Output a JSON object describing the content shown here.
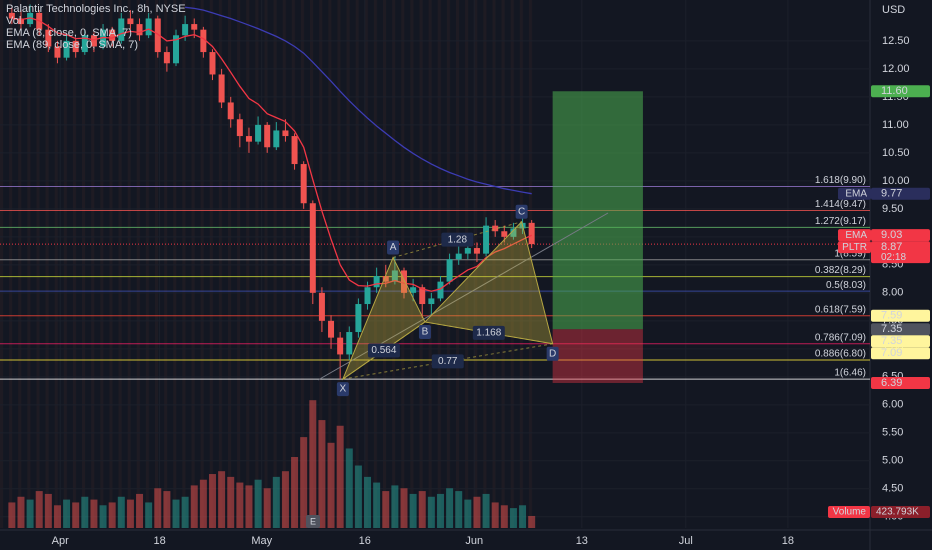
{
  "chart_data": {
    "type": "candlestick",
    "title": "Palantir Technologies Inc., 8h, NYSE",
    "currency": "USD",
    "earnings_marker": "E",
    "x": [
      0,
      1,
      2,
      3,
      4,
      5,
      6,
      7,
      8,
      9,
      10,
      11,
      12,
      13,
      14,
      15,
      16,
      17,
      18,
      19,
      20,
      21,
      22,
      23,
      24,
      25,
      26,
      27,
      28,
      29,
      30,
      31,
      32,
      33,
      34,
      35,
      36,
      37,
      38,
      39,
      40,
      41,
      42,
      43,
      44,
      45,
      46,
      47,
      48,
      49,
      50,
      51,
      52,
      53,
      54,
      55,
      56,
      57
    ],
    "xlim": [
      -1.3,
      94.1
    ],
    "xticks": [
      {
        "value": 5.3,
        "label": "Apr"
      },
      {
        "value": 16.2,
        "label": "18"
      },
      {
        "value": 27.4,
        "label": "May"
      },
      {
        "value": 38.7,
        "label": "16"
      },
      {
        "value": 50.7,
        "label": "Jun"
      },
      {
        "value": 62.5,
        "label": "13"
      },
      {
        "value": 73.9,
        "label": "Jul"
      },
      {
        "value": 85.1,
        "label": "18"
      }
    ],
    "ylim": [
      3.8,
      13.23
    ],
    "yticks": [
      {
        "value": 4,
        "label": "4.00"
      },
      {
        "value": 4.5,
        "label": "4.50"
      },
      {
        "value": 5,
        "label": "5.00"
      },
      {
        "value": 5.5,
        "label": "5.50"
      },
      {
        "value": 6,
        "label": "6.00"
      },
      {
        "value": 6.5,
        "label": "6.50"
      },
      {
        "value": 7,
        "label": "7.00"
      },
      {
        "value": 7.5,
        "label": "7.50"
      },
      {
        "value": 8,
        "label": "8.00"
      },
      {
        "value": 8.5,
        "label": "8.50"
      },
      {
        "value": 9,
        "label": "9.00"
      },
      {
        "value": 9.5,
        "label": "9.50"
      },
      {
        "value": 10,
        "label": "10.00"
      },
      {
        "value": 10.5,
        "label": "10.50"
      },
      {
        "value": 11,
        "label": "11.00"
      },
      {
        "value": 11.5,
        "label": "11.50"
      },
      {
        "value": 12,
        "label": "12.00"
      },
      {
        "value": 12.5,
        "label": "12.50"
      }
    ],
    "y2lim": [
      0,
      5000
    ],
    "grid": true,
    "up_color": "#26a69a",
    "down_color": "#ef5350",
    "open": [
      13.0,
      12.9,
      12.8,
      13.0,
      12.7,
      12.4,
      12.2,
      12.5,
      12.3,
      12.6,
      12.4,
      12.7,
      12.5,
      12.9,
      12.8,
      12.6,
      12.9,
      12.3,
      12.1,
      12.6,
      12.8,
      12.7,
      12.3,
      11.9,
      11.4,
      11.1,
      10.8,
      10.7,
      11.0,
      10.6,
      10.9,
      10.8,
      10.3,
      9.6,
      8.0,
      7.5,
      7.2,
      6.9,
      7.3,
      7.8,
      8.1,
      8.3,
      8.2,
      8.4,
      8.0,
      8.1,
      7.8,
      7.9,
      8.2,
      8.6,
      8.7,
      8.8,
      8.7,
      9.2,
      9.1,
      9.0,
      9.15,
      9.25
    ],
    "high": [
      13.1,
      13.05,
      13.15,
      13.05,
      12.8,
      12.5,
      12.6,
      12.55,
      12.7,
      12.65,
      12.8,
      12.75,
      13.0,
      13.05,
      12.9,
      13.0,
      12.95,
      12.4,
      12.7,
      12.95,
      12.9,
      12.75,
      12.35,
      12.0,
      11.5,
      11.2,
      10.95,
      11.15,
      11.05,
      11.05,
      11.1,
      10.85,
      10.35,
      9.65,
      8.1,
      7.6,
      7.3,
      7.4,
      7.9,
      8.2,
      8.45,
      8.5,
      8.65,
      8.45,
      8.25,
      8.15,
      8.0,
      8.3,
      8.7,
      8.85,
      9.0,
      8.9,
      9.35,
      9.3,
      9.2,
      9.25,
      9.35,
      9.3
    ],
    "low": [
      12.8,
      12.7,
      12.75,
      12.6,
      12.3,
      12.1,
      12.15,
      12.2,
      12.25,
      12.3,
      12.35,
      12.4,
      12.45,
      12.7,
      12.5,
      12.55,
      12.2,
      11.95,
      12.05,
      12.5,
      12.55,
      12.2,
      11.8,
      11.3,
      10.95,
      10.6,
      10.5,
      10.65,
      10.5,
      10.55,
      10.7,
      10.2,
      9.5,
      7.8,
      7.3,
      7.0,
      6.46,
      6.8,
      7.2,
      7.7,
      8.0,
      8.1,
      8.15,
      7.9,
      7.85,
      7.55,
      7.6,
      7.85,
      8.15,
      8.5,
      8.6,
      8.55,
      8.65,
      9.0,
      8.9,
      8.95,
      9.05,
      8.8
    ],
    "close": [
      12.9,
      12.8,
      13.0,
      12.7,
      12.4,
      12.2,
      12.5,
      12.3,
      12.6,
      12.4,
      12.7,
      12.5,
      12.9,
      12.8,
      12.6,
      12.9,
      12.3,
      12.1,
      12.6,
      12.8,
      12.7,
      12.3,
      11.9,
      11.4,
      11.1,
      10.8,
      10.7,
      11.0,
      10.6,
      10.9,
      10.8,
      10.3,
      9.6,
      8.0,
      7.5,
      7.2,
      6.9,
      7.3,
      7.8,
      8.1,
      8.3,
      8.2,
      8.4,
      8.0,
      8.1,
      7.8,
      7.9,
      8.2,
      8.6,
      8.7,
      8.8,
      8.7,
      9.2,
      9.1,
      9.0,
      9.15,
      9.25,
      8.87
    ],
    "series": [
      {
        "name": "Vol",
        "axis": "y2",
        "values": [
          900,
          1100,
          1000,
          1300,
          1200,
          800,
          1000,
          900,
          1100,
          1000,
          800,
          900,
          1100,
          1000,
          1200,
          900,
          1400,
          1300,
          1000,
          1100,
          1500,
          1700,
          1900,
          2000,
          1800,
          1600,
          1500,
          1700,
          1400,
          1800,
          2000,
          2500,
          3200,
          4500,
          3800,
          3000,
          3600,
          2800,
          2200,
          1800,
          1600,
          1300,
          1500,
          1400,
          1200,
          1300,
          1100,
          1200,
          1400,
          1300,
          1000,
          1100,
          1200,
          900,
          800,
          700,
          800,
          423.793
        ]
      },
      {
        "name": "EMA (8, close, 0, SMA, 7)",
        "color": "#f23645",
        "values": [
          12.9,
          12.88,
          12.91,
          12.86,
          12.76,
          12.64,
          12.61,
          12.54,
          12.55,
          12.52,
          12.56,
          12.55,
          12.63,
          12.67,
          12.65,
          12.71,
          12.62,
          12.5,
          12.52,
          12.58,
          12.61,
          12.54,
          12.4,
          12.18,
          11.94,
          11.69,
          11.47,
          11.37,
          11.2,
          11.13,
          11.06,
          10.89,
          10.6,
          10.02,
          9.46,
          8.96,
          8.5,
          8.23,
          8.13,
          8.12,
          8.16,
          8.17,
          8.22,
          8.17,
          8.15,
          8.07,
          8.03,
          8.07,
          8.19,
          8.3,
          8.41,
          8.47,
          8.63,
          8.73,
          8.79,
          8.87,
          8.95,
          9.03
        ]
      },
      {
        "name": "EMA (89, close, 0, SMA, 7)",
        "color": "#3c3cb4",
        "values": [
          null,
          null,
          null,
          null,
          null,
          null,
          null,
          null,
          null,
          null,
          null,
          null,
          null,
          null,
          null,
          null,
          null,
          null,
          null,
          13.1,
          13.08,
          13.05,
          13.0,
          12.95,
          12.9,
          12.84,
          12.78,
          12.72,
          12.65,
          12.58,
          12.5,
          12.4,
          12.28,
          12.12,
          11.95,
          11.78,
          11.6,
          11.43,
          11.27,
          11.12,
          10.98,
          10.85,
          10.72,
          10.6,
          10.49,
          10.39,
          10.3,
          10.22,
          10.15,
          10.09,
          10.03,
          9.98,
          9.94,
          9.9,
          9.86,
          9.83,
          9.8,
          9.77
        ]
      }
    ],
    "fib_levels": [
      {
        "label": "1.618(9.90)",
        "value": 9.9,
        "color": "#9575cd"
      },
      {
        "label": "1.414(9.47)",
        "value": 9.47,
        "color": "#ef5350"
      },
      {
        "label": "1.272(9.17)",
        "value": 9.17,
        "color": "#66bb6a"
      },
      {
        "label": "1(8.59)",
        "value": 8.59,
        "color": "#9e9e9e"
      },
      {
        "label": "0.382(8.29)",
        "value": 8.29,
        "color": "#cddc39"
      },
      {
        "label": "0.5(8.03)",
        "value": 8.03,
        "color": "#3f51b5"
      },
      {
        "label": "0.618(7.59)",
        "value": 7.59,
        "color": "#f44336"
      },
      {
        "label": "0.786(7.09)",
        "value": 7.09,
        "color": "#e91e63"
      },
      {
        "label": "0.886(6.80)",
        "value": 6.8,
        "color": "#ffeb3b"
      },
      {
        "label": "1(6.46)",
        "value": 6.46,
        "color": "#ffffff"
      }
    ],
    "pattern": [
      {
        "label": "X",
        "x": 36.3,
        "y": 6.46
      },
      {
        "label": "A",
        "x": 41.8,
        "y": 8.63
      },
      {
        "label": "B",
        "x": 45.3,
        "y": 7.48
      },
      {
        "label": "C",
        "x": 55.9,
        "y": 9.27
      },
      {
        "label": "D",
        "x": 59.3,
        "y": 7.09
      }
    ],
    "pattern_ratios": [
      0.564,
      1.28,
      0.77,
      1.168
    ],
    "position": {
      "x": [
        59.3,
        69.2
      ],
      "target": 11.6,
      "entry": 7.35,
      "stop": 6.39
    },
    "price_tags": [
      {
        "value": 11.6,
        "label": "11.60",
        "color": "#4caf50"
      },
      {
        "name": "EMA",
        "value": 9.77,
        "label": "9.77",
        "color": "#2a2e5c"
      },
      {
        "name": "EMA",
        "value": 9.03,
        "label": "9.03",
        "color": "#f23645"
      },
      {
        "name": "PLTR",
        "value": 8.87,
        "label": "8.87",
        "countdown": "02:18",
        "color": "#f23645"
      },
      {
        "value": 7.59,
        "label": "7.59",
        "color": "#fff59d"
      },
      {
        "value": 7.35,
        "label": "7.35",
        "color": "#50535e"
      },
      {
        "value": 7.35,
        "label": "7.35",
        "color": "#fff59d"
      },
      {
        "value": 7.09,
        "label": "7.09",
        "color": "#fff59d"
      },
      {
        "value": 6.39,
        "label": "6.39",
        "color": "#f23645"
      }
    ],
    "volume_tag": {
      "name": "Volume",
      "value": 423.793,
      "label": "423.793K",
      "color": "#f23645"
    }
  }
}
